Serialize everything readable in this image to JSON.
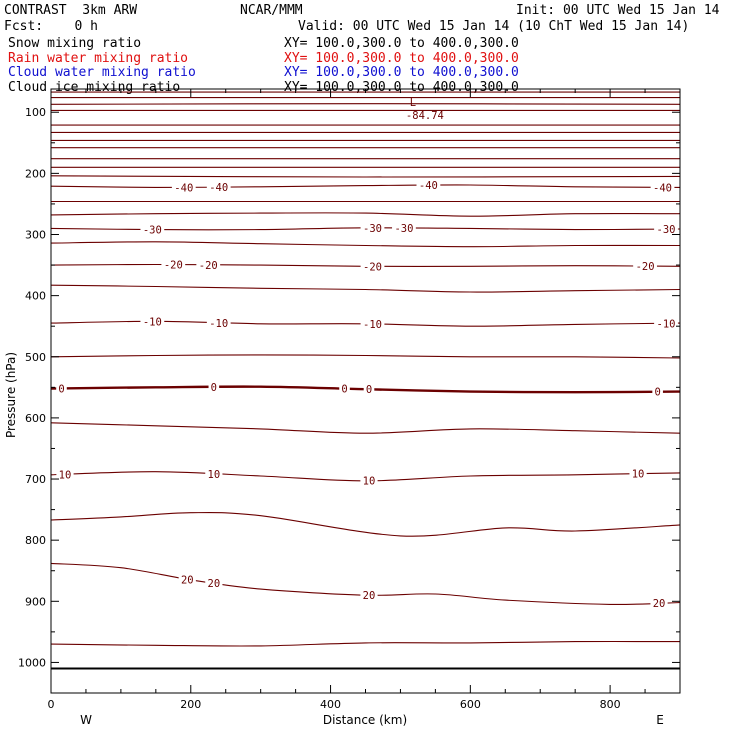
{
  "header": {
    "model": "CONTRAST  3km ARW",
    "org": "NCAR/MMM",
    "init": "Init: 00 UTC Wed 15 Jan 14",
    "fcst": "Fcst:    0 h",
    "valid": "Valid: 00 UTC Wed 15 Jan 14 (10 ChT Wed 15 Jan 14)",
    "fields": [
      {
        "name": "Snow mixing ratio",
        "xy": "XY= 100.0,300.0 to 400.0,300.0",
        "color": "#000000"
      },
      {
        "name": "Rain water mixing ratio",
        "xy": "XY= 100.0,300.0 to 400.0,300.0",
        "color": "#e01010"
      },
      {
        "name": "Cloud water mixing ratio",
        "xy": "XY= 100.0,300.0 to 400.0,300.0",
        "color": "#1010d0"
      },
      {
        "name": "Cloud ice mixing ratio",
        "xy": "XY= 100.0,300.0 to 400.0,300.0",
        "color": "#000000"
      }
    ]
  },
  "chart_data": {
    "type": "line",
    "xlabel": "Distance (km)",
    "ylabel": "Pressure (hPa)",
    "xlim": [
      0,
      900
    ],
    "ylim": [
      1050,
      62
    ],
    "x_ticks": [
      0,
      200,
      400,
      600,
      800
    ],
    "y_ticks": [
      100,
      200,
      300,
      400,
      500,
      600,
      700,
      800,
      900,
      1000
    ],
    "end_labels": {
      "left": "W",
      "right": "E"
    },
    "surface_pressure": 1010,
    "contour_color": "#6b0000",
    "low_marker": {
      "symbol": "L",
      "value": "-84.74",
      "x": 535,
      "p": 100
    },
    "contours": [
      {
        "x": [
          0,
          900
        ],
        "p": [
          67,
          67
        ],
        "labels": []
      },
      {
        "x": [
          0,
          900
        ],
        "p": [
          76,
          76
        ],
        "labels": []
      },
      {
        "x": [
          0,
          450,
          900
        ],
        "p": [
          87,
          86,
          87
        ],
        "labels": []
      },
      {
        "x": [
          0,
          900
        ],
        "p": [
          97,
          97
        ],
        "labels": []
      },
      {
        "x": [
          0,
          900
        ],
        "p": [
          121,
          121
        ],
        "labels": []
      },
      {
        "x": [
          0,
          900
        ],
        "p": [
          133,
          133
        ],
        "labels": []
      },
      {
        "x": [
          0,
          900
        ],
        "p": [
          146,
          146
        ],
        "labels": []
      },
      {
        "x": [
          0,
          900
        ],
        "p": [
          158,
          158
        ],
        "labels": []
      },
      {
        "x": [
          0,
          900
        ],
        "p": [
          176,
          176
        ],
        "labels": []
      },
      {
        "x": [
          0,
          900
        ],
        "p": [
          190,
          190
        ],
        "labels": []
      },
      {
        "x": [
          0,
          450,
          900
        ],
        "p": [
          204,
          206,
          205
        ],
        "labels": []
      },
      {
        "x": [
          0,
          150,
          300,
          450,
          600,
          750,
          900
        ],
        "p": [
          221,
          223,
          222,
          220,
          219,
          222,
          223
        ],
        "labels": [
          {
            "text": "-40",
            "x": 190
          },
          {
            "text": "-40",
            "x": 240
          },
          {
            "text": "-40",
            "x": 540
          },
          {
            "text": "-40",
            "x": 875
          }
        ]
      },
      {
        "x": [
          0,
          900
        ],
        "p": [
          246,
          246
        ],
        "labels": []
      },
      {
        "x": [
          0,
          150,
          300,
          450,
          600,
          750,
          900
        ],
        "p": [
          268,
          266,
          265,
          265,
          270,
          266,
          266
        ],
        "labels": []
      },
      {
        "x": [
          0,
          150,
          300,
          450,
          600,
          750,
          900
        ],
        "p": [
          290,
          292,
          292,
          289,
          290,
          292,
          291
        ],
        "labels": [
          {
            "text": "-30",
            "x": 145
          },
          {
            "text": "-30",
            "x": 460
          },
          {
            "text": "-30",
            "x": 505
          },
          {
            "text": "-30",
            "x": 880
          }
        ]
      },
      {
        "x": [
          0,
          150,
          300,
          450,
          600,
          750,
          900
        ],
        "p": [
          314,
          312,
          315,
          318,
          320,
          318,
          318
        ],
        "labels": []
      },
      {
        "x": [
          0,
          150,
          300,
          450,
          600,
          750,
          900
        ],
        "p": [
          350,
          349,
          350,
          352,
          352,
          351,
          352
        ],
        "labels": [
          {
            "text": "-20",
            "x": 175
          },
          {
            "text": "-20",
            "x": 225
          },
          {
            "text": "-20",
            "x": 460
          },
          {
            "text": "-20",
            "x": 850
          }
        ]
      },
      {
        "x": [
          0,
          150,
          300,
          450,
          600,
          750,
          900
        ],
        "p": [
          383,
          385,
          388,
          390,
          394,
          392,
          390
        ],
        "labels": []
      },
      {
        "x": [
          0,
          150,
          300,
          450,
          600,
          750,
          900
        ],
        "p": [
          445,
          442,
          446,
          446,
          450,
          447,
          445
        ],
        "labels": [
          {
            "text": "-10",
            "x": 145
          },
          {
            "text": "-10",
            "x": 240
          },
          {
            "text": "-10",
            "x": 460
          },
          {
            "text": "-10",
            "x": 880
          }
        ]
      },
      {
        "x": [
          0,
          150,
          300,
          450,
          600,
          750,
          900
        ],
        "p": [
          500,
          498,
          497,
          498,
          500,
          500,
          502
        ],
        "labels": []
      },
      {
        "x": [
          0,
          150,
          300,
          450,
          600,
          750,
          900
        ],
        "p": [
          552,
          550,
          549,
          553,
          557,
          558,
          557
        ],
        "bold": true,
        "labels": [
          {
            "text": "0",
            "x": 15
          },
          {
            "text": "0",
            "x": 233
          },
          {
            "text": "0",
            "x": 420
          },
          {
            "text": "0",
            "x": 455
          },
          {
            "text": "0",
            "x": 868
          }
        ]
      },
      {
        "x": [
          0,
          150,
          300,
          450,
          600,
          750,
          900
        ],
        "p": [
          608,
          613,
          618,
          625,
          618,
          621,
          625
        ],
        "labels": []
      },
      {
        "x": [
          0,
          150,
          300,
          450,
          600,
          750,
          900
        ],
        "p": [
          693,
          688,
          695,
          703,
          695,
          693,
          690
        ],
        "labels": [
          {
            "text": "10",
            "x": 20
          },
          {
            "text": "10",
            "x": 233
          },
          {
            "text": "10",
            "x": 455
          },
          {
            "text": "10",
            "x": 840
          }
        ]
      },
      {
        "x": [
          0,
          100,
          200,
          300,
          500,
          650,
          750,
          900
        ],
        "p": [
          767,
          762,
          755,
          760,
          793,
          780,
          785,
          775
        ],
        "labels": []
      },
      {
        "x": [
          0,
          100,
          200,
          300,
          450,
          550,
          650,
          800,
          900
        ],
        "p": [
          838,
          845,
          865,
          880,
          890,
          888,
          898,
          905,
          902
        ],
        "labels": [
          {
            "text": "20",
            "x": 195
          },
          {
            "text": "20",
            "x": 233
          },
          {
            "text": "20",
            "x": 455
          },
          {
            "text": "20",
            "x": 870
          }
        ]
      },
      {
        "x": [
          0,
          150,
          300,
          450,
          600,
          750,
          900
        ],
        "p": [
          970,
          972,
          973,
          968,
          968,
          966,
          966
        ],
        "labels": []
      }
    ]
  }
}
